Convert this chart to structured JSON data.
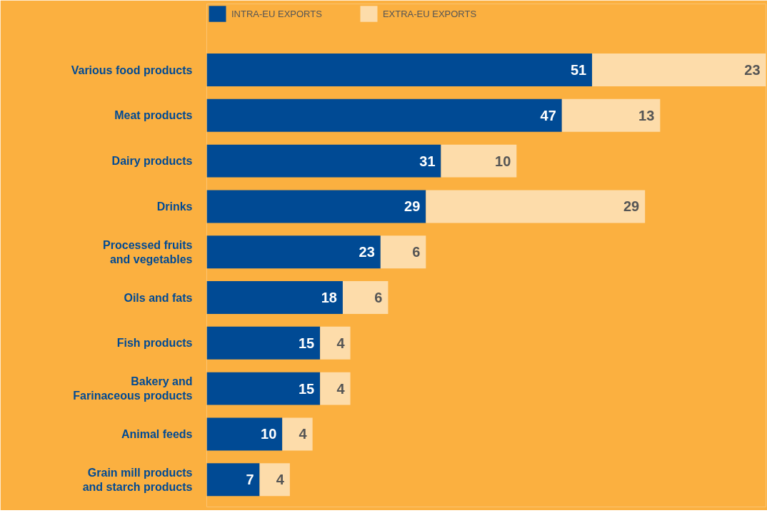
{
  "chart_data": {
    "type": "bar",
    "orientation": "horizontal",
    "stacked": true,
    "data_labels": true,
    "legend": "top",
    "grid": false,
    "categories": [
      "Various food products",
      "Meat products",
      "Dairy products",
      "Drinks",
      "Processed fruits\nand vegetables",
      "Oils and fats",
      "Fish products",
      "Bakery and\nFarinaceous products",
      "Animal feeds",
      "Grain mill products\nand starch products"
    ],
    "series": [
      {
        "name": "INTRA-EU EXPORTS",
        "color": "#004a94",
        "values": [
          51,
          47,
          31,
          29,
          23,
          18,
          15,
          15,
          10,
          7
        ]
      },
      {
        "name": "EXTRA-EU EXPORTS",
        "color": "#fddcaa",
        "values": [
          23,
          13,
          10,
          29,
          6,
          6,
          4,
          4,
          4,
          4
        ]
      }
    ]
  }
}
